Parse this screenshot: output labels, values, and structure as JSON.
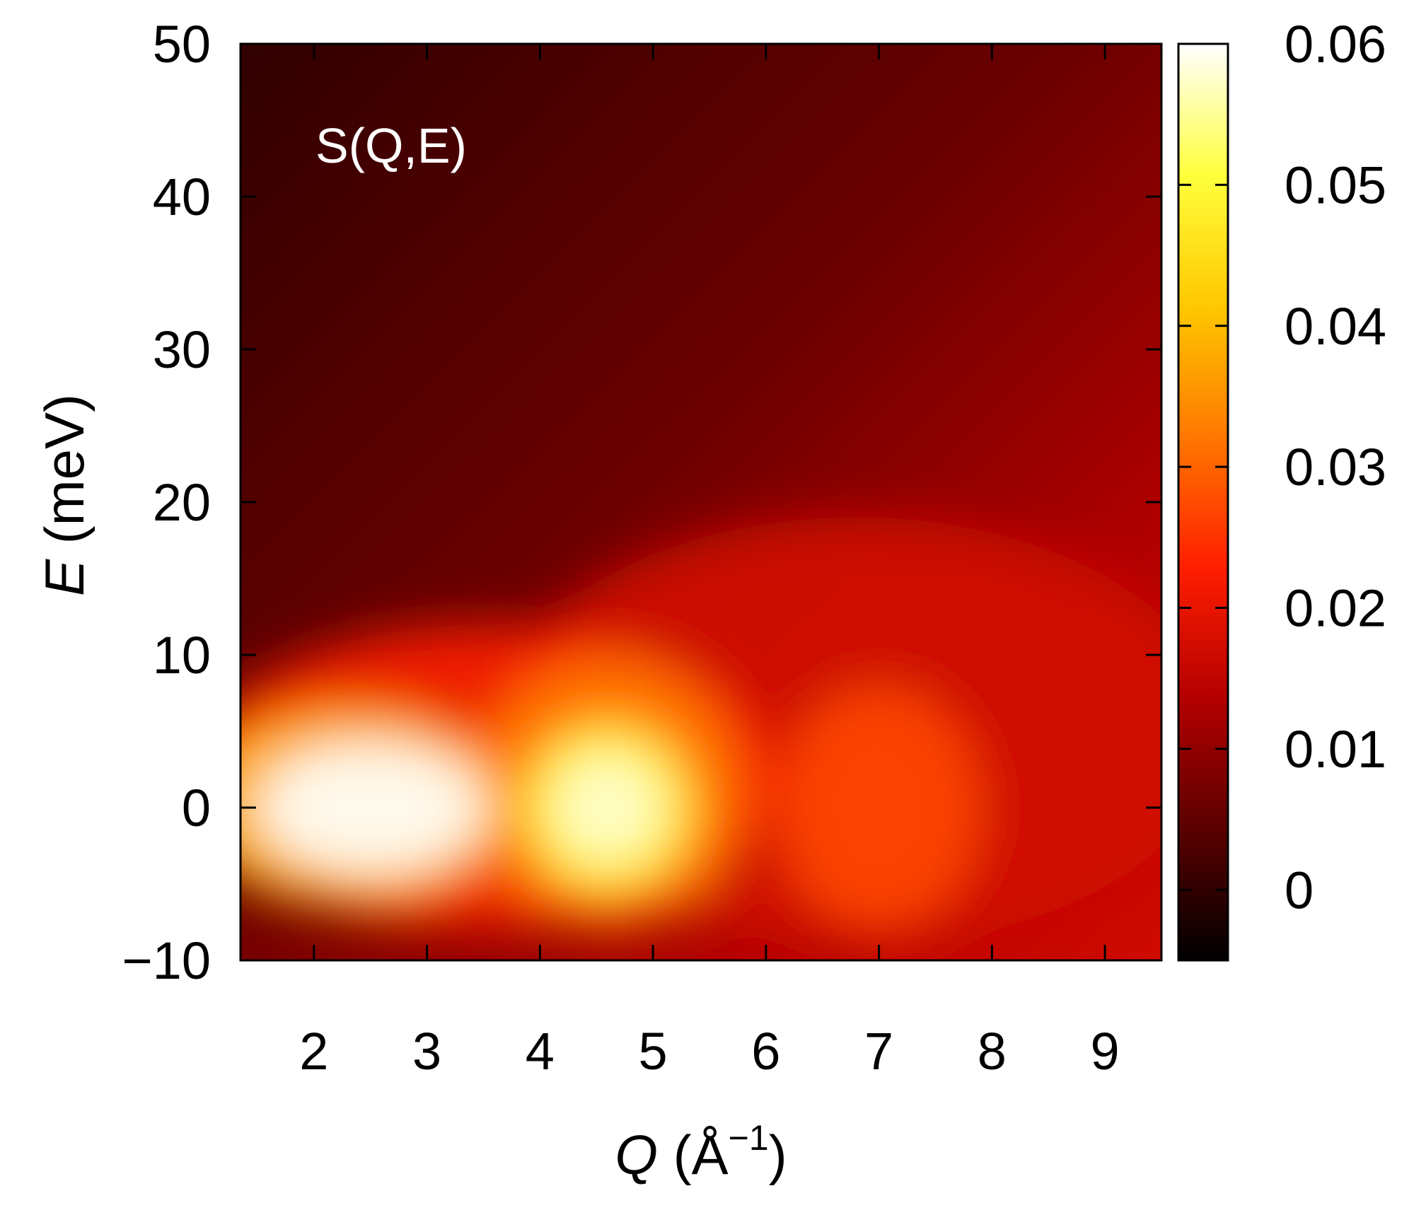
{
  "chart_data": {
    "type": "heatmap",
    "annotation": "S(Q,E)",
    "xlabel": {
      "symbol": "Q",
      "unit_open": " (Å",
      "exponent": "−1",
      "unit_close": ")"
    },
    "ylabel": {
      "symbol": "E",
      "unit": " (meV)"
    },
    "xlim": [
      1.35,
      9.5
    ],
    "ylim": [
      -10,
      50
    ],
    "x_ticks": [
      2,
      3,
      4,
      5,
      6,
      7,
      8,
      9
    ],
    "x_tick_labels": [
      "2",
      "3",
      "4",
      "5",
      "6",
      "7",
      "8",
      "9"
    ],
    "y_ticks": [
      -10,
      0,
      10,
      20,
      30,
      40,
      50
    ],
    "y_tick_labels": [
      "−10",
      "0",
      "10",
      "20",
      "30",
      "40",
      "50"
    ],
    "colorbar": {
      "range": [
        -0.005,
        0.06
      ],
      "ticks": [
        0,
        0.01,
        0.02,
        0.03,
        0.04,
        0.05,
        0.06
      ],
      "tick_labels": [
        "0",
        "0.01",
        "0.02",
        "0.03",
        "0.04",
        "0.05",
        "0.06"
      ],
      "colormap": [
        "#000000",
        "#5a0000",
        "#b40000",
        "#ff1e00",
        "#ff7800",
        "#ffc800",
        "#ffff3c",
        "#ffffff"
      ]
    },
    "intensity_peaks": [
      {
        "Q": 2.5,
        "E": 0,
        "intensity": 0.06
      },
      {
        "Q": 4.6,
        "E": 0,
        "intensity": 0.055
      },
      {
        "Q": 7.0,
        "E": 0,
        "intensity": 0.027
      }
    ],
    "grid": false
  }
}
